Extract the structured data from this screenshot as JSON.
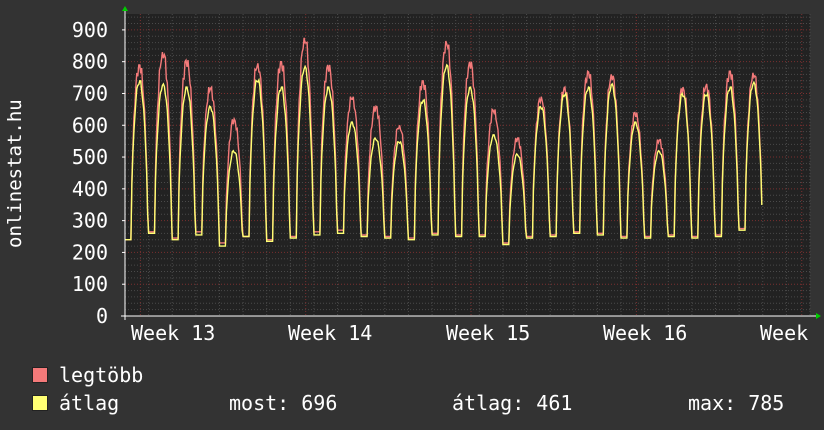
{
  "chart_data": {
    "type": "line",
    "ylabel": "onlinestat.hu",
    "xlabel": "",
    "ylim": [
      0,
      950
    ],
    "yticks": [
      0,
      100,
      200,
      300,
      400,
      500,
      600,
      700,
      800,
      900
    ],
    "x_tick_labels": [
      "Week 13",
      "Week 14",
      "Week 15",
      "Week 16",
      "Week"
    ],
    "grid": true,
    "legend_position": "bottom-left",
    "day_count": 29,
    "series": [
      {
        "name": "legtöbb",
        "color": "#f47a7a",
        "daily_peak": [
          790,
          830,
          805,
          720,
          620,
          795,
          800,
          875,
          790,
          690,
          660,
          600,
          740,
          865,
          800,
          650,
          560,
          690,
          720,
          770,
          760,
          640,
          555,
          720,
          730,
          770,
          765,
          0,
          0
        ],
        "daily_trough": [
          240,
          265,
          245,
          265,
          230,
          250,
          240,
          250,
          265,
          270,
          255,
          250,
          245,
          260,
          255,
          255,
          230,
          250,
          255,
          265,
          260,
          250,
          250,
          255,
          250,
          255,
          275,
          0,
          0
        ]
      },
      {
        "name": "átlag",
        "color": "#ffff73",
        "daily_peak": [
          740,
          730,
          720,
          660,
          520,
          745,
          720,
          785,
          720,
          610,
          560,
          550,
          680,
          790,
          720,
          570,
          510,
          660,
          700,
          720,
          730,
          610,
          520,
          700,
          700,
          720,
          735,
          0,
          0
        ],
        "daily_trough": [
          240,
          260,
          240,
          255,
          220,
          250,
          235,
          245,
          255,
          260,
          250,
          245,
          240,
          255,
          250,
          250,
          225,
          245,
          250,
          260,
          255,
          245,
          245,
          250,
          245,
          250,
          270,
          0,
          0
        ]
      }
    ]
  },
  "legend": [
    {
      "label": "legtöbb",
      "color": "#f47a7a"
    },
    {
      "label": "átlag",
      "color": "#ffff73"
    }
  ],
  "stats": {
    "now_label": "most:",
    "now_value": "696",
    "avg_label": "átlag:",
    "avg_value": "461",
    "max_label": "max:",
    "max_value": "785"
  },
  "colors": {
    "background": "#333333",
    "plot_background": "#222222",
    "axis": "#ffffff",
    "grid_minor": "#4a4a4a",
    "grid_major": "#7a2f2f",
    "arrow": "#00cc00"
  }
}
